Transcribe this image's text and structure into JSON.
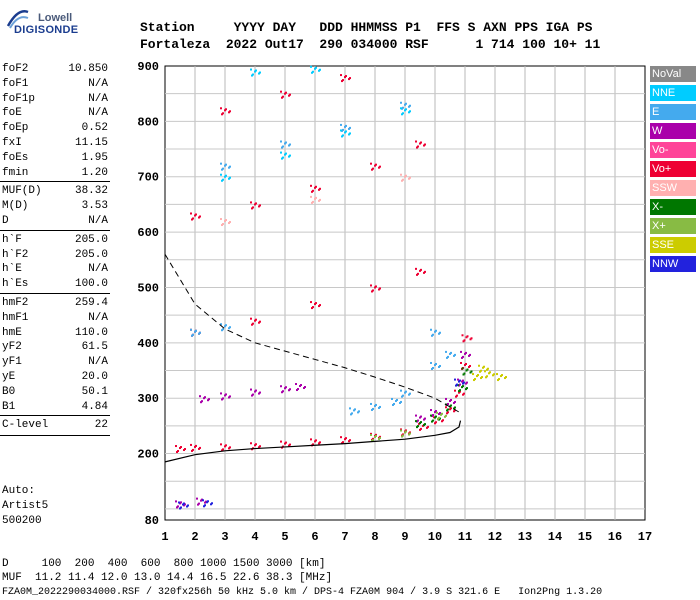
{
  "logo": {
    "top": "Lowell",
    "bottom": "DIGISONDE"
  },
  "header": {
    "line1": "Station     YYYY DAY   DDD HHMMSS P1  FFS S AXN PPS IGA PS",
    "line2": "Fortaleza  2022 Out17  290 034000 RSF      1 714 100 10+ 11"
  },
  "params": [
    {
      "name": "foF2",
      "value": "10.850"
    },
    {
      "name": "foF1",
      "value": "N/A"
    },
    {
      "name": "foF1p",
      "value": "N/A"
    },
    {
      "name": "foE",
      "value": "N/A"
    },
    {
      "name": "foEp",
      "value": "0.52"
    },
    {
      "name": "fxI",
      "value": "11.15"
    },
    {
      "name": "foEs",
      "value": "1.95"
    },
    {
      "name": "fmin",
      "value": "1.20"
    },
    {
      "name": "MUF(D)",
      "value": "38.32"
    },
    {
      "name": "M(D)",
      "value": "3.53"
    },
    {
      "name": "D",
      "value": "N/A"
    },
    {
      "name": "h`F",
      "value": "205.0"
    },
    {
      "name": "h`F2",
      "value": "205.0"
    },
    {
      "name": "h`E",
      "value": "N/A"
    },
    {
      "name": "h`Es",
      "value": "100.0"
    },
    {
      "name": "hmF2",
      "value": "259.4"
    },
    {
      "name": "hmF1",
      "value": "N/A"
    },
    {
      "name": "hmE",
      "value": "110.0"
    },
    {
      "name": "yF2",
      "value": "61.5"
    },
    {
      "name": "yF1",
      "value": "N/A"
    },
    {
      "name": "yE",
      "value": "20.0"
    },
    {
      "name": "B0",
      "value": "50.1"
    },
    {
      "name": "B1",
      "value": "4.84"
    },
    {
      "name": "C-level",
      "value": "22"
    }
  ],
  "autoscale": {
    "line1": "Auto:",
    "line2": "Artist5",
    "line3": "500200"
  },
  "footer": {
    "distance_line": "D     100  200  400  600  800 1000 1500 3000 [km]",
    "muf_line": "MUF  11.2 11.4 12.0 13.0 14.4 16.5 22.6 38.3 [MHz]",
    "file_line": "FZA0M_2022290034000.RSF / 320fx256h 50 kHz 5.0 km / DPS-4 FZA0M 904 / 3.9 S 321.6 E   Ion2Png 1.3.20"
  },
  "legend": [
    {
      "label": "NoVal",
      "color": "#888888"
    },
    {
      "label": "NNE",
      "color": "#00ccff"
    },
    {
      "label": "E",
      "color": "#44aaee"
    },
    {
      "label": "W",
      "color": "#aa00aa"
    },
    {
      "label": "Vo-",
      "color": "#ff4499"
    },
    {
      "label": "Vo+",
      "color": "#ee0033"
    },
    {
      "label": "SSW",
      "color": "#ffb0b0"
    },
    {
      "label": "X-",
      "color": "#007700"
    },
    {
      "label": "X+",
      "color": "#88bb44"
    },
    {
      "label": "SSE",
      "color": "#cccc00"
    },
    {
      "label": "NNW",
      "color": "#2222dd"
    }
  ],
  "chart_data": {
    "type": "scatter",
    "xlim": [
      1,
      17
    ],
    "ylim": [
      80,
      900
    ],
    "x_ticks": [
      1,
      2,
      3,
      4,
      5,
      6,
      7,
      8,
      9,
      10,
      11,
      12,
      13,
      14,
      15,
      16,
      17
    ],
    "y_ticks": [
      80,
      200,
      300,
      400,
      500,
      600,
      700,
      800,
      900
    ],
    "grid": true,
    "legend_placement": "right",
    "series": [
      {
        "name": "Vo+",
        "color": "#ee0033",
        "points": [
          [
            1.5,
            210
          ],
          [
            2,
            212
          ],
          [
            3,
            213
          ],
          [
            4,
            215
          ],
          [
            5,
            218
          ],
          [
            6,
            222
          ],
          [
            7,
            226
          ],
          [
            8,
            232
          ],
          [
            9,
            240
          ],
          [
            9.6,
            250
          ],
          [
            10.1,
            262
          ],
          [
            10.5,
            280
          ],
          [
            10.8,
            310
          ],
          [
            11,
            360
          ],
          [
            11.05,
            410
          ],
          [
            2,
            420
          ],
          [
            4,
            440
          ],
          [
            6,
            470
          ],
          [
            8,
            500
          ],
          [
            9.5,
            530
          ],
          [
            2,
            630
          ],
          [
            4,
            650
          ],
          [
            6,
            680
          ],
          [
            8,
            720
          ],
          [
            9.5,
            760
          ],
          [
            3,
            820
          ],
          [
            5,
            850
          ],
          [
            7,
            880
          ]
        ]
      },
      {
        "name": "W",
        "color": "#aa00aa",
        "points": [
          [
            2.3,
            300
          ],
          [
            3,
            305
          ],
          [
            4,
            312
          ],
          [
            5,
            318
          ],
          [
            5.5,
            322
          ],
          [
            9.5,
            265
          ],
          [
            10,
            275
          ],
          [
            10.5,
            295
          ],
          [
            10.9,
            330
          ],
          [
            11,
            380
          ],
          [
            1.5,
            110
          ],
          [
            2.2,
            115
          ]
        ]
      },
      {
        "name": "E",
        "color": "#44aaee",
        "points": [
          [
            2,
            420
          ],
          [
            3,
            430
          ],
          [
            7.3,
            278
          ],
          [
            8,
            286
          ],
          [
            8.7,
            295
          ],
          [
            9,
            310
          ],
          [
            10,
            360
          ],
          [
            10.5,
            380
          ],
          [
            3,
            720
          ],
          [
            5,
            760
          ],
          [
            7,
            790
          ],
          [
            9,
            830
          ],
          [
            10,
            420
          ]
        ]
      },
      {
        "name": "NNE",
        "color": "#00ccff",
        "points": [
          [
            3,
            700
          ],
          [
            5,
            740
          ],
          [
            7,
            780
          ],
          [
            9,
            820
          ],
          [
            4,
            890
          ],
          [
            6,
            895
          ]
        ]
      },
      {
        "name": "X-",
        "color": "#007700",
        "points": [
          [
            9.5,
            255
          ],
          [
            10,
            265
          ],
          [
            10.5,
            285
          ],
          [
            10.9,
            320
          ],
          [
            11.05,
            350
          ]
        ]
      },
      {
        "name": "X+",
        "color": "#88bb44",
        "points": [
          [
            8,
            230
          ],
          [
            9,
            238
          ],
          [
            10.2,
            270
          ]
        ]
      },
      {
        "name": "SSE",
        "color": "#cccc00",
        "points": [
          [
            11.4,
            340
          ],
          [
            11.6,
            355
          ],
          [
            11.8,
            345
          ],
          [
            12.2,
            340
          ]
        ]
      },
      {
        "name": "NNW",
        "color": "#2222dd",
        "points": [
          [
            1.6,
            108
          ],
          [
            2.4,
            112
          ],
          [
            10.8,
            330
          ]
        ]
      },
      {
        "name": "SSW",
        "color": "#ffb0b0",
        "points": [
          [
            3,
            620
          ],
          [
            6,
            660
          ],
          [
            9,
            700
          ]
        ]
      }
    ],
    "profile_curve": [
      [
        1,
        185
      ],
      [
        2,
        198
      ],
      [
        3,
        205
      ],
      [
        4,
        209
      ],
      [
        5,
        212
      ],
      [
        6,
        215
      ],
      [
        7,
        218
      ],
      [
        8,
        222
      ],
      [
        9,
        226
      ],
      [
        10,
        233
      ],
      [
        10.5,
        238
      ],
      [
        10.8,
        248
      ],
      [
        10.85,
        259.4
      ]
    ],
    "profile_dashed": [
      [
        1,
        560
      ],
      [
        2,
        470
      ],
      [
        3,
        425
      ],
      [
        4,
        400
      ],
      [
        5,
        385
      ],
      [
        6,
        370
      ],
      [
        7,
        355
      ],
      [
        8,
        338
      ],
      [
        9,
        320
      ],
      [
        10,
        300
      ],
      [
        10.8,
        275
      ]
    ]
  }
}
